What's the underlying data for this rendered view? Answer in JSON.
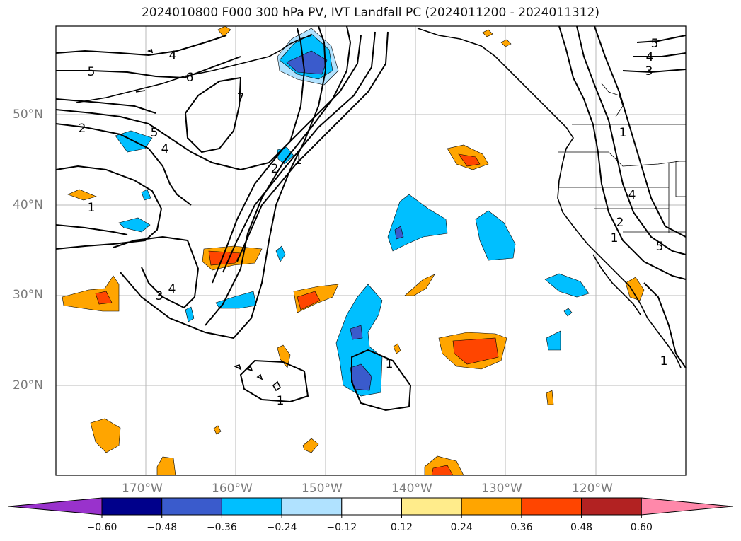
{
  "title": "2024010800 F000 300 hPa PV, IVT Landfall PC (2024011200 - 2024011312)",
  "map": {
    "lat_ticks": [
      "20°N",
      "30°N",
      "40°N",
      "50°N"
    ],
    "lon_ticks": [
      "170°W",
      "160°W",
      "150°W",
      "140°W",
      "130°W",
      "120°W"
    ],
    "contour_labels": [
      "4",
      "5",
      "6",
      "7",
      "2",
      "1",
      "5",
      "4",
      "1",
      "3",
      "4",
      "2",
      "1",
      "1",
      "1",
      "5",
      "4",
      "3",
      "4",
      "2",
      "1",
      "5",
      "1"
    ]
  },
  "colorbar": {
    "ticks": [
      "−0.60",
      "−0.48",
      "−0.36",
      "−0.24",
      "−0.12",
      "0.12",
      "0.24",
      "0.36",
      "0.48",
      "0.60"
    ],
    "colors": [
      "#9932cc",
      "#00008b",
      "#3a5bcc",
      "#00bfff",
      "#b0e2ff",
      "#ffffff",
      "#ffec8b",
      "#ffa500",
      "#ff4500",
      "#b22222",
      "#ff88aa"
    ]
  },
  "legend": {
    "fill_colors": {
      "neg_light": "#b0e2ff",
      "neg": "#00bfff",
      "neg_dark": "#3a5bcc",
      "pos_light": "#ffec8b",
      "pos": "#ffa500",
      "pos_dark": "#ff4500"
    }
  }
}
